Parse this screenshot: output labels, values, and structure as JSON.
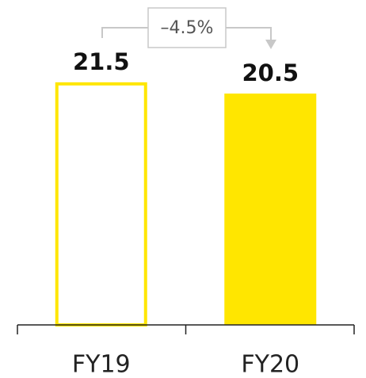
{
  "chart_data": {
    "type": "bar",
    "categories": [
      "FY19",
      "FY20"
    ],
    "values": [
      21.5,
      20.5
    ],
    "color": "#ffe600",
    "bar_styles": [
      "outline",
      "filled"
    ],
    "annotation": "–4.5%"
  }
}
